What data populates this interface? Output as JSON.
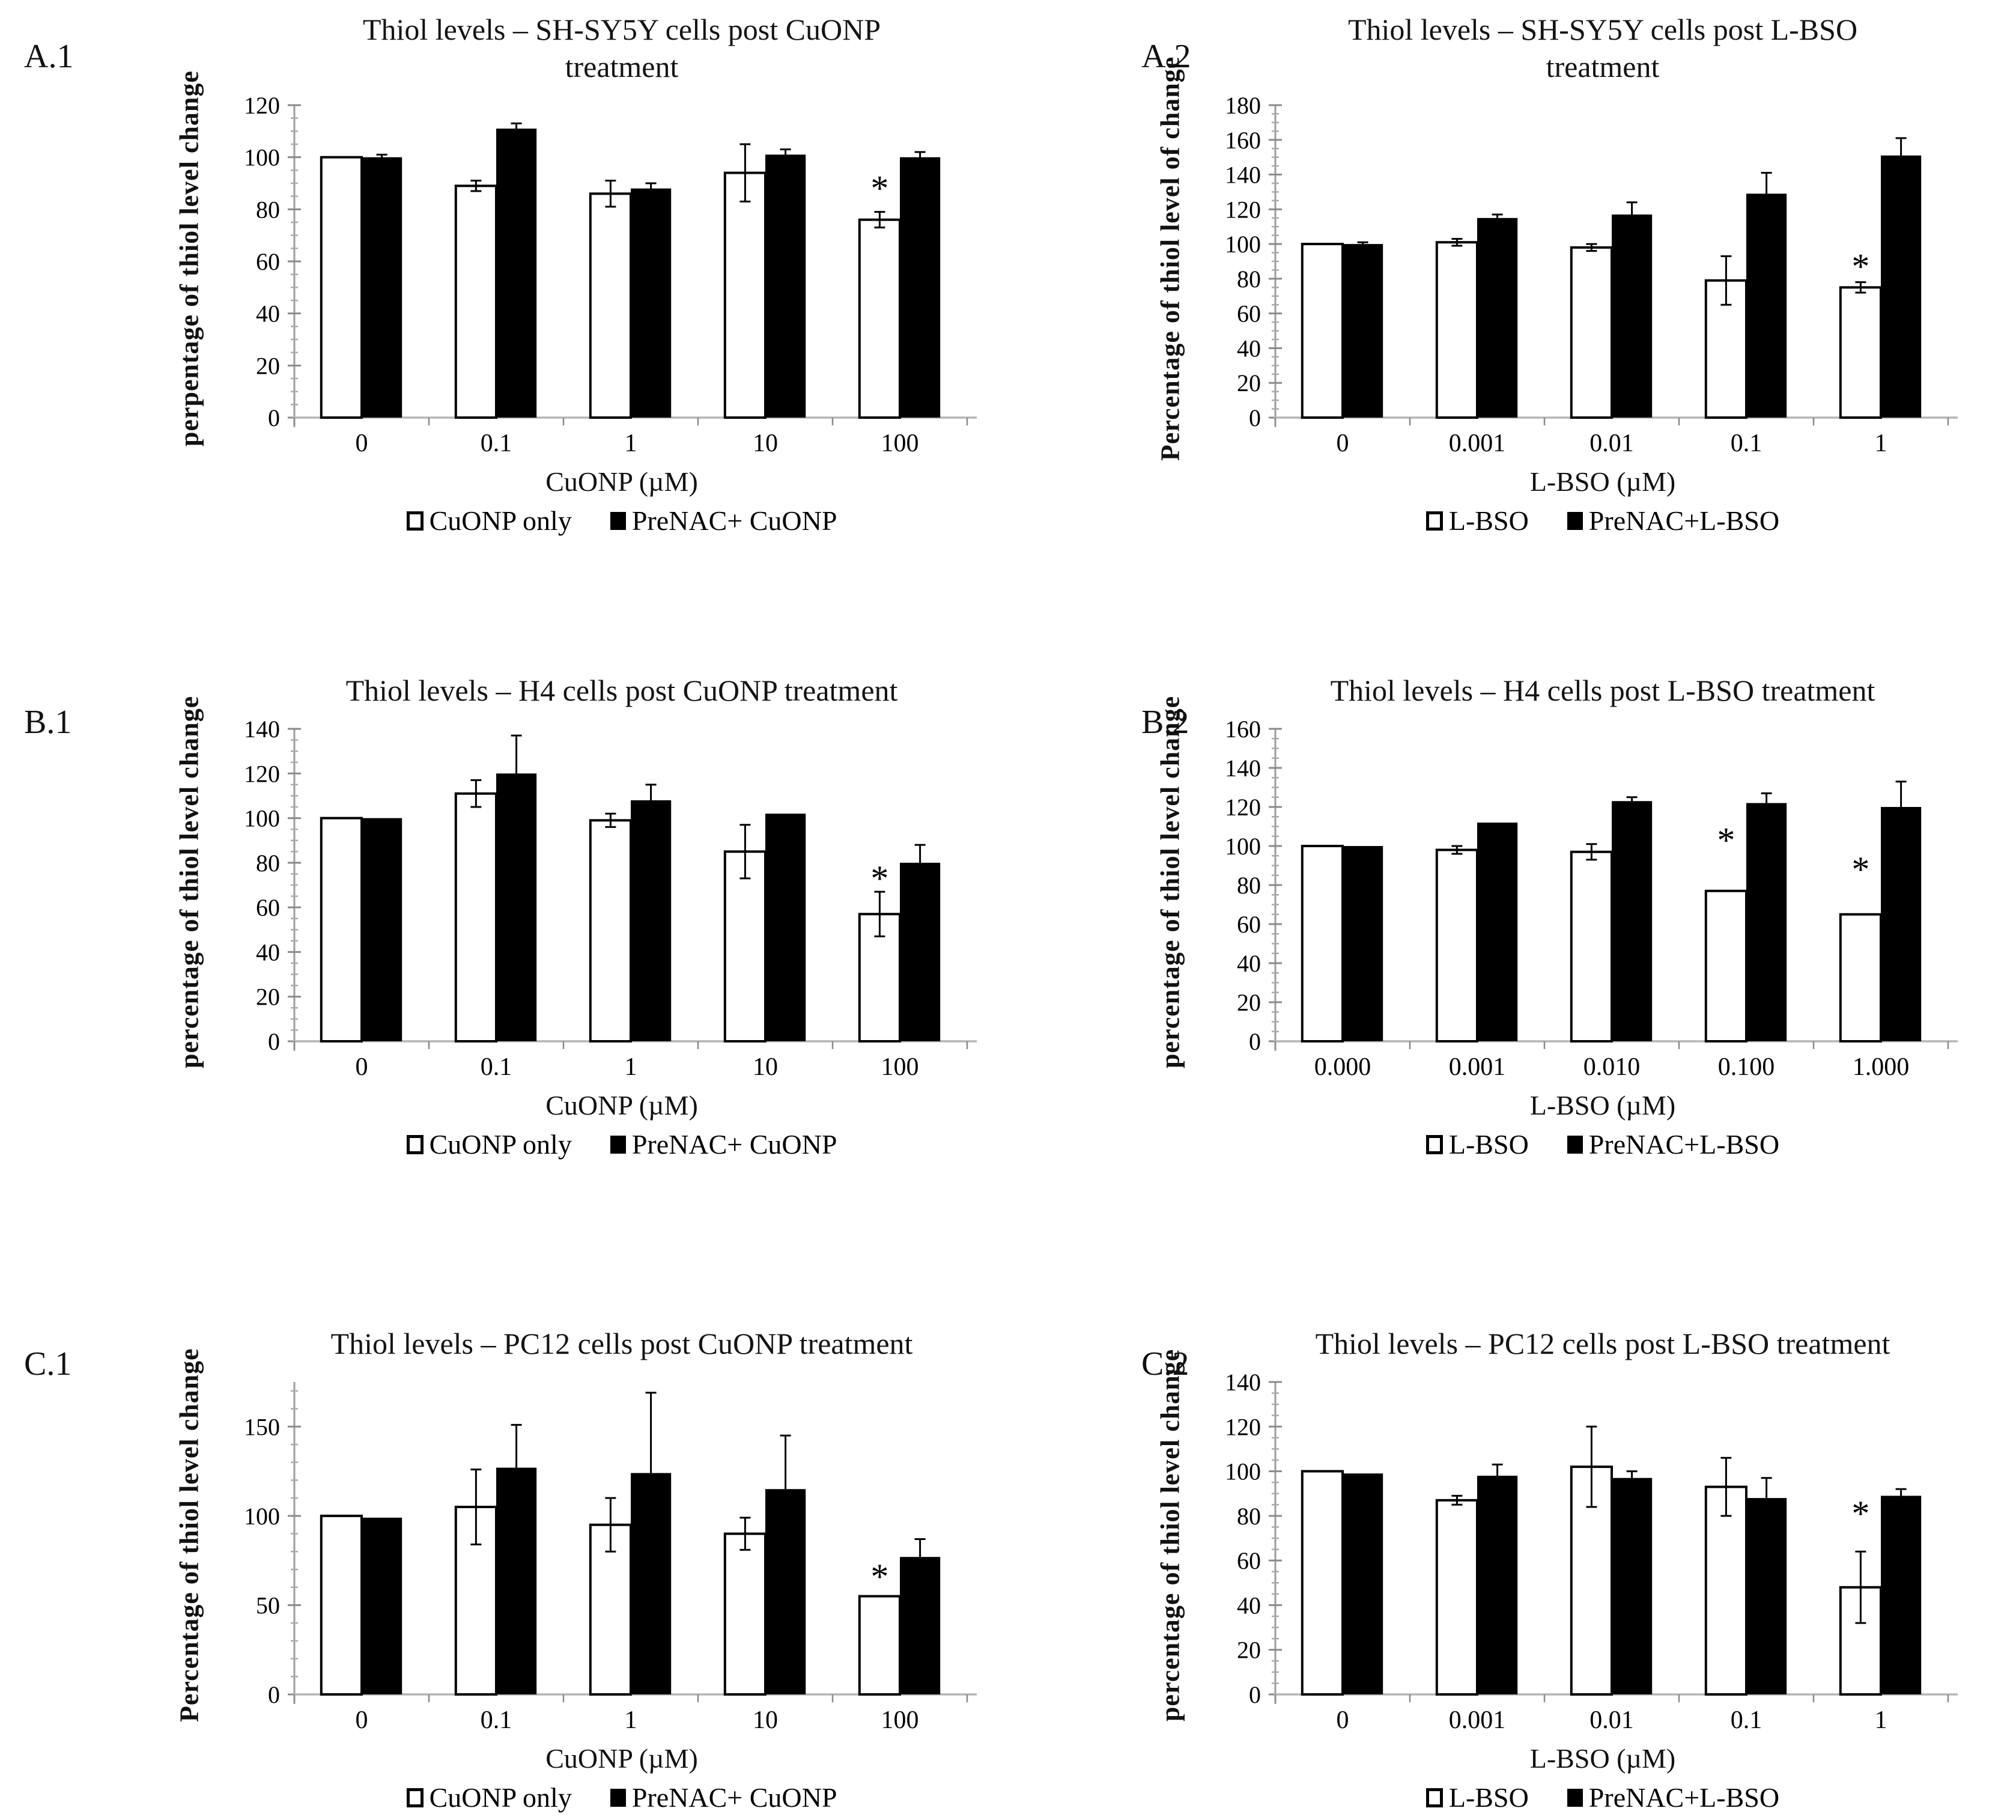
{
  "page": {
    "background": "#ffffff",
    "bar_open_fill": "#ffffff",
    "bar_filled_fill": "#000000"
  },
  "chart_data": [
    {
      "type": "bar",
      "panel_label": "A.1",
      "title": "Thiol levels – SH-SY5Y cells post CuONP",
      "title2": "treatment",
      "ylabel": "perpentage of thiol level change",
      "xlabel": "CuONP (µM)",
      "yaxis_max": 120,
      "yticks": [
        0,
        20,
        40,
        60,
        80,
        100,
        120
      ],
      "yminor_step": 5,
      "categories": [
        "0",
        "0.1",
        "1",
        "10",
        "100"
      ],
      "series": [
        {
          "name": "CuONP only",
          "fill": "#ffffff",
          "outline": true,
          "values": [
            100,
            89,
            86,
            94,
            76
          ],
          "errors": [
            0,
            2,
            5,
            11,
            3
          ],
          "sig": [
            0,
            0,
            0,
            0,
            88
          ]
        },
        {
          "name": "PreNAC+ CuONP",
          "fill": "#000000",
          "outline": false,
          "values": [
            100,
            111,
            88,
            101,
            100
          ],
          "errors": [
            1,
            2,
            2,
            2,
            2
          ],
          "sig": [
            0,
            0,
            0,
            0,
            0
          ]
        }
      ]
    },
    {
      "type": "bar",
      "panel_label": "A.2",
      "title": "Thiol levels – SH-SY5Y cells post L-BSO",
      "title2": "treatment",
      "ylabel": "Percentage of thiol level of change",
      "xlabel": "L-BSO (µM)",
      "yaxis_max": 180,
      "yticks": [
        0,
        20,
        40,
        60,
        80,
        100,
        120,
        140,
        160,
        180
      ],
      "yminor_step": 5,
      "categories": [
        "0",
        "0.001",
        "0.01",
        "0.1",
        "1"
      ],
      "series": [
        {
          "name": "L-BSO",
          "fill": "#ffffff",
          "outline": true,
          "values": [
            100,
            101,
            98,
            79,
            75
          ],
          "errors": [
            0,
            2,
            2,
            14,
            3
          ],
          "sig": [
            0,
            0,
            0,
            0,
            87
          ]
        },
        {
          "name": "PreNAC+L-BSO",
          "fill": "#000000",
          "outline": false,
          "values": [
            100,
            115,
            117,
            129,
            151
          ],
          "errors": [
            1,
            2,
            7,
            12,
            10
          ],
          "sig": [
            0,
            0,
            0,
            0,
            0
          ]
        }
      ]
    },
    {
      "type": "bar",
      "panel_label": "B.1",
      "title": "Thiol levels – H4 cells post CuONP treatment",
      "ylabel": "percentage of thiol level change",
      "xlabel": "CuONP (µM)",
      "yaxis_max": 140,
      "yticks": [
        0,
        20,
        40,
        60,
        80,
        100,
        120,
        140
      ],
      "yminor_step": 5,
      "categories": [
        "0",
        "0.1",
        "1",
        "10",
        "100"
      ],
      "series": [
        {
          "name": "CuONP only",
          "fill": "#ffffff",
          "outline": true,
          "values": [
            100,
            111,
            99,
            85,
            57
          ],
          "errors": [
            0,
            6,
            3,
            12,
            10
          ],
          "sig": [
            0,
            0,
            0,
            0,
            73
          ]
        },
        {
          "name": "PreNAC+ CuONP",
          "fill": "#000000",
          "outline": false,
          "values": [
            100,
            120,
            108,
            102,
            80
          ],
          "errors": [
            0,
            17,
            7,
            0,
            8
          ],
          "sig": [
            0,
            0,
            0,
            0,
            0
          ]
        }
      ]
    },
    {
      "type": "bar",
      "panel_label": "B.2",
      "title": "Thiol levels – H4 cells post L-BSO treatment",
      "ylabel": "percentage of thiol level change",
      "xlabel": "L-BSO (µM)",
      "yaxis_max": 160,
      "yticks": [
        0,
        20,
        40,
        60,
        80,
        100,
        120,
        140,
        160
      ],
      "yminor_step": 5,
      "categories": [
        "0.000",
        "0.001",
        "0.010",
        "0.100",
        "1.000"
      ],
      "series": [
        {
          "name": "L-BSO",
          "fill": "#ffffff",
          "outline": true,
          "values": [
            100,
            98,
            97,
            77,
            65
          ],
          "errors": [
            0,
            2,
            4,
            0,
            0
          ],
          "sig": [
            0,
            0,
            0,
            103,
            88
          ]
        },
        {
          "name": "PreNAC+L-BSO",
          "fill": "#000000",
          "outline": false,
          "values": [
            100,
            112,
            123,
            122,
            120
          ],
          "errors": [
            0,
            0,
            2,
            5,
            13
          ],
          "sig": [
            0,
            0,
            0,
            0,
            0
          ]
        }
      ]
    },
    {
      "type": "bar",
      "panel_label": "C.1",
      "title": "Thiol levels – PC12 cells post CuONP treatment",
      "ylabel": "Percentage of thiol level change",
      "xlabel": "CuONP (µM)",
      "yaxis_max": 175,
      "yticks": [
        0,
        50,
        100,
        150
      ],
      "yminor_step": 10,
      "categories": [
        "0",
        "0.1",
        "1",
        "10",
        "100"
      ],
      "series": [
        {
          "name": "CuONP only",
          "fill": "#ffffff",
          "outline": true,
          "values": [
            100,
            105,
            95,
            90,
            55
          ],
          "errors": [
            0,
            21,
            15,
            9,
            0
          ],
          "sig": [
            0,
            0,
            0,
            0,
            66
          ]
        },
        {
          "name": "PreNAC+ CuONP",
          "fill": "#000000",
          "outline": false,
          "values": [
            99,
            127,
            124,
            115,
            77
          ],
          "errors": [
            0,
            24,
            45,
            30,
            10
          ],
          "sig": [
            0,
            0,
            0,
            0,
            0
          ]
        }
      ]
    },
    {
      "type": "bar",
      "panel_label": "C.2",
      "title": "Thiol levels – PC12 cells post L-BSO treatment",
      "ylabel": "percentage of thiol level change",
      "xlabel": "L-BSO (µM)",
      "yaxis_max": 140,
      "yticks": [
        0,
        20,
        40,
        60,
        80,
        100,
        120,
        140
      ],
      "yminor_step": 5,
      "categories": [
        "0",
        "0.001",
        "0.01",
        "0.1",
        "1"
      ],
      "series": [
        {
          "name": "L-BSO",
          "fill": "#ffffff",
          "outline": true,
          "values": [
            100,
            87,
            102,
            93,
            48
          ],
          "errors": [
            0,
            2,
            18,
            13,
            16
          ],
          "sig": [
            0,
            0,
            0,
            0,
            81
          ]
        },
        {
          "name": "PreNAC+L-BSO",
          "fill": "#000000",
          "outline": false,
          "values": [
            99,
            98,
            97,
            88,
            89
          ],
          "errors": [
            0,
            5,
            3,
            9,
            3
          ],
          "sig": [
            0,
            0,
            0,
            0,
            0
          ]
        }
      ]
    }
  ]
}
